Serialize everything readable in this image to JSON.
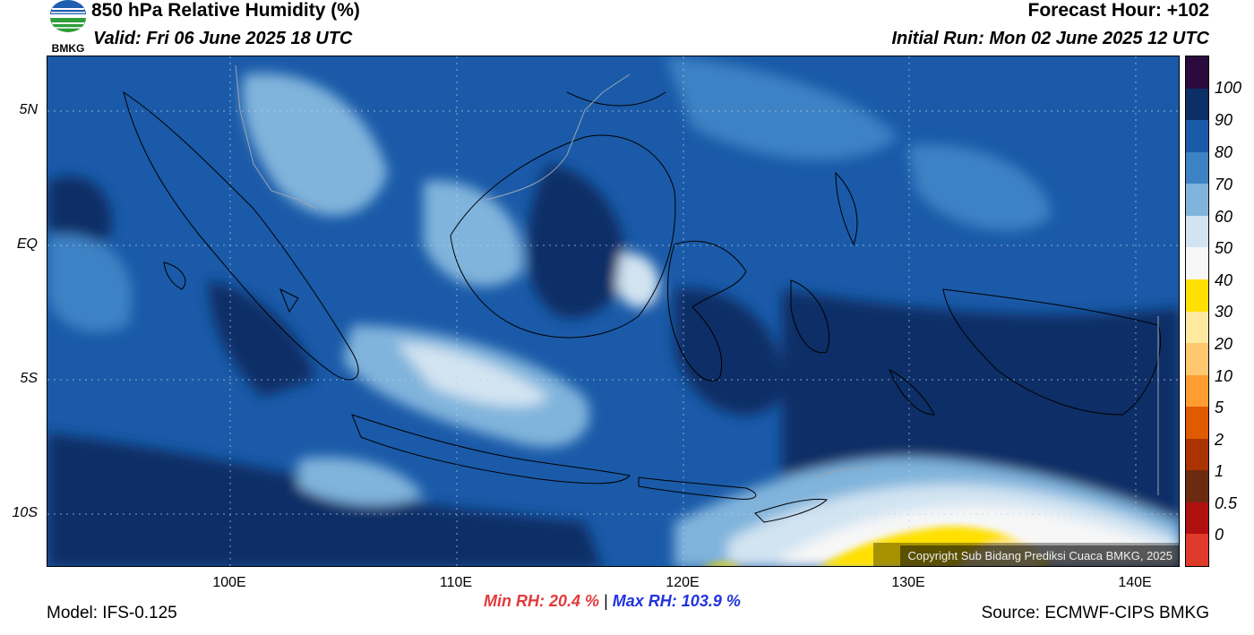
{
  "header": {
    "title": "850 hPa Relative Humidity (%)",
    "valid": "Valid: Fri 06 June 2025 18 UTC",
    "forecast_hour": "Forecast Hour: +102",
    "initial_run": "Initial Run: Mon 02 June 2025 12 UTC",
    "logo_text": "BMKG"
  },
  "map": {
    "lat_labels": [
      "5N",
      "EQ",
      "5S",
      "10S"
    ],
    "lon_labels": [
      "100E",
      "110E",
      "120E",
      "130E",
      "140E"
    ],
    "copyright": "Copyright Sub Bidang Prediksi Cuaca BMKG, 2025"
  },
  "colorbar": {
    "labels": [
      "100",
      "90",
      "80",
      "70",
      "60",
      "50",
      "40",
      "30",
      "20",
      "10",
      "5",
      "2",
      "1",
      "0.5",
      "0"
    ],
    "colors": [
      "#2b0a3d",
      "#0b2f66",
      "#1a5aa8",
      "#3c82c4",
      "#80b4dc",
      "#d2e4f2",
      "#f7f7f7",
      "#ffe000",
      "#ffe9a0",
      "#ffc870",
      "#ff9d30",
      "#e05a00",
      "#aa3300",
      "#6e2a10",
      "#b01010",
      "#e03a2a"
    ]
  },
  "footer": {
    "min_label": "Min RH:",
    "min_value": "20.4 %",
    "separator": "|",
    "max_label": "Max RH:",
    "max_value": "103.9 %",
    "model": "Model: IFS-0.125",
    "source": "Source: ECMWF-CIPS BMKG"
  }
}
